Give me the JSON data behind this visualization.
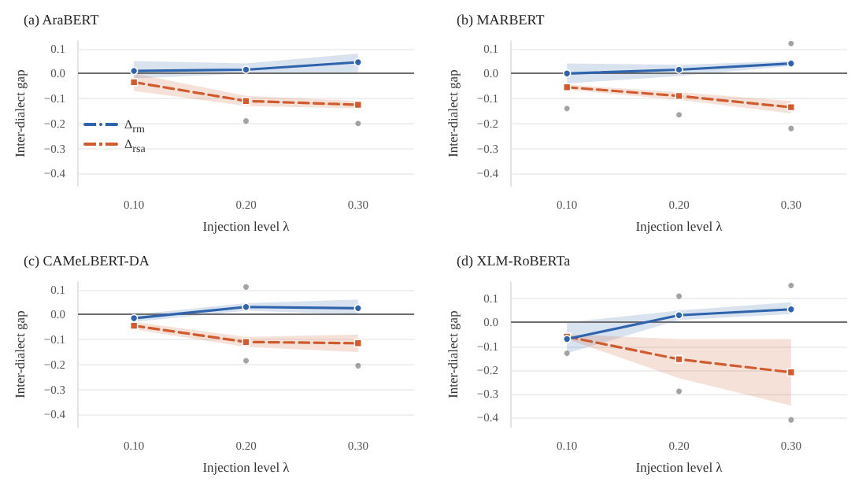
{
  "chart_data": [
    {
      "type": "line",
      "title": "(a) AraBERT",
      "xlabel": "Injection level λ",
      "ylabel": "Inter-dialect gap",
      "categories": [
        "0.10",
        "0.20",
        "0.30"
      ],
      "ylim": [
        -0.45,
        0.13
      ],
      "yticks": [
        {
          "value": -0.4,
          "label": "−0.4"
        },
        {
          "value": -0.3,
          "label": "−0.3"
        },
        {
          "value": -0.2,
          "label": "−0.2"
        },
        {
          "value": -0.1,
          "label": "−0.1"
        },
        {
          "value": 0,
          "label": "0.0"
        },
        {
          "value": 0.1,
          "label": "0.1"
        }
      ],
      "grid": "y",
      "legend": "bottom left",
      "ref_lines": [
        {
          "axis": "y",
          "value": 0,
          "color": "#6e6e6e"
        }
      ],
      "series": [
        {
          "name": "Δ$_{rm}$",
          "color": "#2f64ad",
          "marker": "circle",
          "line_style": "solid",
          "values": [
            0.01,
            0.015,
            0.045
          ],
          "lower": [
            -0.02,
            0.0,
            0.005
          ],
          "upper": [
            0.05,
            0.04,
            0.08
          ]
        },
        {
          "name": "Δ$_{rsa}$",
          "color": "#cf5b2e",
          "marker": "square",
          "line_style": "dashed",
          "values": [
            -0.035,
            -0.11,
            -0.125
          ],
          "lower": [
            -0.07,
            -0.13,
            -0.14
          ],
          "upper": [
            0.0,
            -0.09,
            -0.11
          ]
        },
        {
          "type": "scatter",
          "color": "#8c8c8c",
          "marker": "circle",
          "x": [
            "0.20",
            "0.30"
          ],
          "values": [
            -0.19,
            -0.2
          ]
        }
      ]
    },
    {
      "type": "line",
      "title": "(b) MARBERT",
      "xlabel": "Injection level λ",
      "ylabel": "Inter-dialect gap",
      "categories": [
        "0.10",
        "0.20",
        "0.30"
      ],
      "ylim": [
        -0.45,
        0.13
      ],
      "yticks": [
        {
          "value": -0.4,
          "label": "−0.4"
        },
        {
          "value": -0.3,
          "label": "−0.3"
        },
        {
          "value": -0.2,
          "label": "−0.2"
        },
        {
          "value": -0.1,
          "label": "−0.1"
        },
        {
          "value": 0,
          "label": "0.0"
        },
        {
          "value": 0.1,
          "label": "0.1"
        }
      ],
      "grid": "y",
      "ref_lines": [
        {
          "axis": "y",
          "value": 0,
          "color": "#6e6e6e"
        }
      ],
      "series": [
        {
          "color": "#2f64ad",
          "marker": "circle",
          "line_style": "solid",
          "values": [
            0.0,
            0.015,
            0.04
          ],
          "lower": [
            -0.04,
            -0.01,
            0.03
          ],
          "upper": [
            0.04,
            0.035,
            0.05
          ]
        },
        {
          "color": "#cf5b2e",
          "marker": "square",
          "line_style": "dashed",
          "values": [
            -0.055,
            -0.09,
            -0.135
          ],
          "lower": [
            -0.065,
            -0.105,
            -0.16
          ],
          "upper": [
            -0.045,
            -0.075,
            -0.11
          ]
        },
        {
          "type": "scatter",
          "color": "#8c8c8c",
          "marker": "circle",
          "x": [
            "0.10",
            "0.20",
            "0.30",
            "0.30"
          ],
          "values": [
            -0.14,
            -0.165,
            -0.22,
            0.12
          ]
        }
      ]
    },
    {
      "type": "line",
      "title": "(c) CAMeLBERT-DA",
      "xlabel": "Injection level λ",
      "ylabel": "Inter-dialect gap",
      "categories": [
        "0.10",
        "0.20",
        "0.30"
      ],
      "ylim": [
        -0.45,
        0.13
      ],
      "yticks": [
        {
          "value": -0.4,
          "label": "−0.4"
        },
        {
          "value": -0.3,
          "label": "−0.3"
        },
        {
          "value": -0.2,
          "label": "−0.2"
        },
        {
          "value": -0.1,
          "label": "−0.1"
        },
        {
          "value": 0,
          "label": "0.0"
        },
        {
          "value": 0.1,
          "label": "0.1"
        }
      ],
      "grid": "y",
      "ref_lines": [
        {
          "axis": "y",
          "value": 0,
          "color": "#6e6e6e"
        }
      ],
      "series": [
        {
          "color": "#2f64ad",
          "marker": "circle",
          "line_style": "solid",
          "values": [
            -0.015,
            0.03,
            0.025
          ],
          "lower": [
            -0.03,
            0.015,
            0.0
          ],
          "upper": [
            0.0,
            0.045,
            0.06
          ]
        },
        {
          "color": "#cf5b2e",
          "marker": "square",
          "line_style": "dashed",
          "values": [
            -0.045,
            -0.11,
            -0.115
          ],
          "lower": [
            -0.06,
            -0.13,
            -0.15
          ],
          "upper": [
            -0.03,
            -0.09,
            -0.08
          ]
        },
        {
          "type": "scatter",
          "color": "#8c8c8c",
          "marker": "circle",
          "x": [
            "0.20",
            "0.20",
            "0.30"
          ],
          "values": [
            0.11,
            -0.185,
            -0.205
          ]
        }
      ]
    },
    {
      "type": "line",
      "title": "(d) XLM-RoBERTa",
      "xlabel": "Injection level λ",
      "ylabel": "Inter-dialect gap",
      "categories": [
        "0.10",
        "0.20",
        "0.30"
      ],
      "ylim": [
        -0.44,
        0.17
      ],
      "yticks": [
        {
          "value": -0.4,
          "label": "−0.4"
        },
        {
          "value": -0.3,
          "label": "−0.3"
        },
        {
          "value": -0.2,
          "label": "−0.2"
        },
        {
          "value": -0.1,
          "label": "−0.1"
        },
        {
          "value": 0,
          "label": "0.0"
        },
        {
          "value": 0.1,
          "label": "0.1"
        }
      ],
      "grid": "y",
      "ref_lines": [
        {
          "axis": "y",
          "value": 0,
          "color": "#6e6e6e"
        }
      ],
      "series": [
        {
          "color": "#2f64ad",
          "marker": "circle",
          "line_style": "solid",
          "values": [
            -0.07,
            0.03,
            0.055
          ],
          "lower": [
            -0.13,
            0.01,
            0.035
          ],
          "upper": [
            0.0,
            0.05,
            0.085
          ]
        },
        {
          "color": "#cf5b2e",
          "marker": "square",
          "line_style": "dashed",
          "values": [
            -0.06,
            -0.155,
            -0.21
          ],
          "lower": [
            -0.07,
            -0.235,
            -0.35
          ],
          "upper": [
            -0.05,
            -0.07,
            -0.07
          ]
        },
        {
          "type": "scatter",
          "color": "#8c8c8c",
          "marker": "circle",
          "x": [
            "0.10",
            "0.20",
            "0.20",
            "0.30",
            "0.30"
          ],
          "values": [
            -0.13,
            0.11,
            -0.29,
            0.155,
            -0.41
          ]
        }
      ]
    }
  ]
}
